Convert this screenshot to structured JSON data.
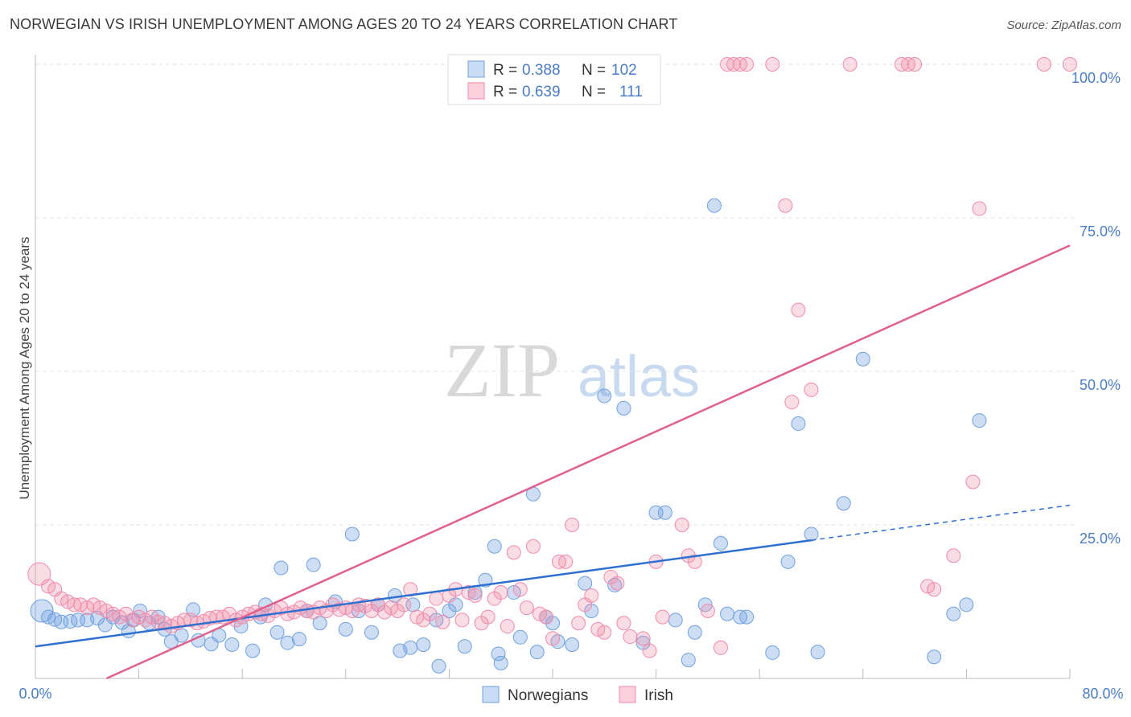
{
  "title": "NORWEGIAN VS IRISH UNEMPLOYMENT AMONG AGES 20 TO 24 YEARS CORRELATION CHART",
  "source": "Source: ZipAtlas.com",
  "watermark": {
    "zip": "ZIP",
    "atlas": "atlas"
  },
  "colors": {
    "norwegians": "#6fa0e0",
    "irish": "#f08aaa",
    "norwegians_line": "#2f6fcf",
    "irish_line": "#e0608c",
    "tick": "#4a7cc7"
  },
  "legend": {
    "norwegians": {
      "r_label": "R =",
      "r_value": "0.388",
      "n_label": "N =",
      "n_value": "102"
    },
    "irish": {
      "r_label": "R =",
      "r_value": "0.639",
      "n_label": "N =",
      "n_value": "111"
    }
  },
  "chart_data": {
    "type": "scatter",
    "title": "NORWEGIAN VS IRISH UNEMPLOYMENT AMONG AGES 20 TO 24 YEARS CORRELATION CHART",
    "xlabel": "",
    "ylabel": "Unemployment Among Ages 20 to 24 years",
    "xlim": [
      0,
      80
    ],
    "ylim": [
      0,
      100
    ],
    "x_tick_labels": [
      "0.0%",
      "80.0%"
    ],
    "y_tick_labels": [
      "25.0%",
      "50.0%",
      "75.0%",
      "100.0%"
    ],
    "y_ticks": [
      25,
      50,
      75,
      100
    ],
    "grid": true,
    "legend_position": "top-center",
    "series": [
      {
        "name": "Norwegians",
        "color": "#6fa0e0",
        "trend": {
          "x": [
            0,
            60
          ],
          "y": [
            5.2,
            22.5
          ],
          "dashed_to": [
            80,
            28.2
          ]
        },
        "points": [
          [
            0.5,
            11
          ],
          [
            1,
            10
          ],
          [
            1.5,
            9.6
          ],
          [
            2,
            9.2
          ],
          [
            2.7,
            9.3
          ],
          [
            3.3,
            9.5
          ],
          [
            4,
            9.5
          ],
          [
            4.8,
            9.8
          ],
          [
            5.4,
            8.7
          ],
          [
            6,
            10
          ],
          [
            6.7,
            9.1
          ],
          [
            7.2,
            7.7
          ],
          [
            7.6,
            9.5
          ],
          [
            8.1,
            11
          ],
          [
            8.8,
            9
          ],
          [
            9.5,
            10
          ],
          [
            10,
            8
          ],
          [
            10.5,
            6
          ],
          [
            11.3,
            7
          ],
          [
            12.2,
            11.2
          ],
          [
            12.6,
            6.2
          ],
          [
            13.6,
            5.6
          ],
          [
            14.2,
            7
          ],
          [
            15.2,
            5.5
          ],
          [
            15.9,
            8.5
          ],
          [
            16.8,
            4.5
          ],
          [
            17.4,
            10
          ],
          [
            17.8,
            12
          ],
          [
            18.7,
            7.5
          ],
          [
            19,
            18
          ],
          [
            19.5,
            5.8
          ],
          [
            20.4,
            6.4
          ],
          [
            21,
            11
          ],
          [
            21.5,
            18.5
          ],
          [
            22,
            9
          ],
          [
            23.2,
            12.5
          ],
          [
            24,
            8
          ],
          [
            24.5,
            23.5
          ],
          [
            25,
            11
          ],
          [
            26,
            7.5
          ],
          [
            26.5,
            12
          ],
          [
            27.8,
            13.5
          ],
          [
            28.2,
            4.5
          ],
          [
            29,
            5
          ],
          [
            29.2,
            12
          ],
          [
            30,
            5.5
          ],
          [
            31,
            9.5
          ],
          [
            31.2,
            2
          ],
          [
            32,
            11
          ],
          [
            32.5,
            12
          ],
          [
            33.2,
            5.2
          ],
          [
            34,
            14
          ],
          [
            34.8,
            16
          ],
          [
            35.5,
            21.5
          ],
          [
            35.8,
            4
          ],
          [
            36,
            2.5
          ],
          [
            37,
            14
          ],
          [
            37.5,
            6.7
          ],
          [
            38.5,
            30
          ],
          [
            38.8,
            4.3
          ],
          [
            39.5,
            10
          ],
          [
            40,
            9
          ],
          [
            40.4,
            6
          ],
          [
            41.5,
            5.5
          ],
          [
            42.5,
            15.5
          ],
          [
            43,
            11
          ],
          [
            44,
            46
          ],
          [
            44.8,
            15.2
          ],
          [
            45.5,
            44
          ],
          [
            47,
            5.8
          ],
          [
            48,
            27
          ],
          [
            48.7,
            27
          ],
          [
            49.5,
            9.5
          ],
          [
            50.5,
            3
          ],
          [
            51,
            7.5
          ],
          [
            51.8,
            12
          ],
          [
            52.5,
            77
          ],
          [
            53,
            22
          ],
          [
            53.5,
            10.5
          ],
          [
            54.5,
            10
          ],
          [
            55,
            10
          ],
          [
            57,
            4.2
          ],
          [
            58.2,
            19
          ],
          [
            59,
            41.5
          ],
          [
            60,
            23.5
          ],
          [
            60.5,
            4.3
          ],
          [
            62.5,
            28.5
          ],
          [
            64,
            52
          ],
          [
            69.5,
            3.5
          ],
          [
            71,
            10.5
          ],
          [
            72,
            12
          ],
          [
            73,
            42
          ]
        ]
      },
      {
        "name": "Irish",
        "color": "#f08aaa",
        "trend": {
          "x": [
            5.5,
            80
          ],
          "y": [
            0,
            70.5
          ]
        },
        "points": [
          [
            0.3,
            17
          ],
          [
            1,
            15
          ],
          [
            1.5,
            14.5
          ],
          [
            2,
            13
          ],
          [
            2.5,
            12.5
          ],
          [
            3,
            12
          ],
          [
            3.5,
            12
          ],
          [
            4,
            11.5
          ],
          [
            4.5,
            12
          ],
          [
            5,
            11.5
          ],
          [
            5.5,
            11
          ],
          [
            6,
            10.5
          ],
          [
            6.5,
            10
          ],
          [
            7,
            10.5
          ],
          [
            7.5,
            9.5
          ],
          [
            8,
            10
          ],
          [
            8.5,
            9.5
          ],
          [
            9,
            10
          ],
          [
            9.5,
            9.2
          ],
          [
            10,
            9
          ],
          [
            10.5,
            8.5
          ],
          [
            11,
            9
          ],
          [
            11.5,
            9.5
          ],
          [
            12,
            9.5
          ],
          [
            12.5,
            9
          ],
          [
            13,
            9.3
          ],
          [
            13.5,
            9.8
          ],
          [
            14,
            10
          ],
          [
            14.5,
            10
          ],
          [
            15,
            10.5
          ],
          [
            15.5,
            9.5
          ],
          [
            16,
            10
          ],
          [
            16.5,
            10.5
          ],
          [
            17,
            10.8
          ],
          [
            17.5,
            10.5
          ],
          [
            18,
            10.2
          ],
          [
            18.5,
            11
          ],
          [
            19,
            11.5
          ],
          [
            19.5,
            10.5
          ],
          [
            20,
            10.8
          ],
          [
            20.5,
            11.5
          ],
          [
            21,
            11
          ],
          [
            21.5,
            10.8
          ],
          [
            22,
            11.5
          ],
          [
            22.5,
            11
          ],
          [
            23,
            12
          ],
          [
            23.5,
            11.2
          ],
          [
            24,
            11.5
          ],
          [
            24.5,
            11
          ],
          [
            25,
            12
          ],
          [
            25.5,
            11.8
          ],
          [
            26,
            11
          ],
          [
            26.5,
            12
          ],
          [
            27,
            10.8
          ],
          [
            27.5,
            11.5
          ],
          [
            28,
            11
          ],
          [
            28.5,
            12
          ],
          [
            29,
            14.5
          ],
          [
            29.5,
            10
          ],
          [
            30,
            9.5
          ],
          [
            30.5,
            10.5
          ],
          [
            31,
            13
          ],
          [
            31.5,
            9.2
          ],
          [
            32,
            13.5
          ],
          [
            32.5,
            14.5
          ],
          [
            33,
            9.5
          ],
          [
            33.5,
            14
          ],
          [
            34,
            13.5
          ],
          [
            34.5,
            9
          ],
          [
            35,
            10
          ],
          [
            35.5,
            13
          ],
          [
            36,
            14
          ],
          [
            36.5,
            8.5
          ],
          [
            37,
            20.5
          ],
          [
            37.5,
            14.5
          ],
          [
            38,
            11.5
          ],
          [
            38.5,
            21.5
          ],
          [
            39,
            10.5
          ],
          [
            39.5,
            10
          ],
          [
            40,
            6.5
          ],
          [
            40.5,
            19
          ],
          [
            41,
            19
          ],
          [
            41.5,
            25
          ],
          [
            42,
            9
          ],
          [
            42.5,
            12
          ],
          [
            43,
            13.5
          ],
          [
            43.5,
            8
          ],
          [
            44,
            7.5
          ],
          [
            44.5,
            16.5
          ],
          [
            45,
            15.5
          ],
          [
            45.5,
            9
          ],
          [
            46,
            6.8
          ],
          [
            47,
            6.5
          ],
          [
            47.5,
            4.5
          ],
          [
            48,
            19
          ],
          [
            48.5,
            10
          ],
          [
            50,
            25
          ],
          [
            50.5,
            20
          ],
          [
            51,
            19
          ],
          [
            52,
            11
          ],
          [
            53,
            5
          ],
          [
            53.5,
            100
          ],
          [
            54,
            100
          ],
          [
            54.5,
            100
          ],
          [
            55,
            100
          ],
          [
            57,
            100
          ],
          [
            58,
            77
          ],
          [
            58.5,
            45
          ],
          [
            59,
            60
          ],
          [
            60,
            47
          ],
          [
            63,
            100
          ],
          [
            67,
            100
          ],
          [
            67.5,
            100
          ],
          [
            68,
            100
          ],
          [
            69,
            15
          ],
          [
            69.5,
            14.5
          ],
          [
            71,
            20
          ],
          [
            72.5,
            32
          ],
          [
            73,
            76.5
          ],
          [
            78,
            100
          ],
          [
            80,
            100
          ]
        ]
      }
    ]
  },
  "bottom_legend": {
    "norwegians": "Norwegians",
    "irish": "Irish"
  }
}
